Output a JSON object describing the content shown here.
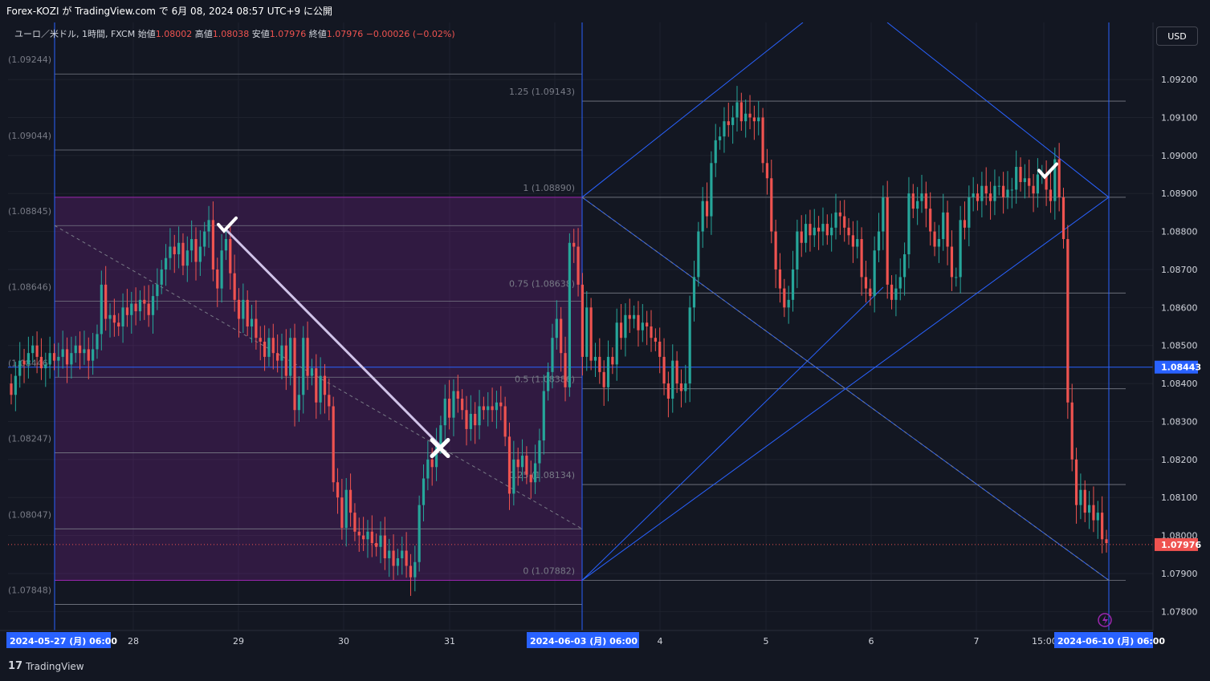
{
  "header": {
    "publish_text": "Forex-KOZI が TradingView.com で 6月 08, 2024 08:57 UTC+9 に公開"
  },
  "legend": {
    "symbol": "ユーロ／米ドル, 1時間, FXCM",
    "open_label": "始値",
    "open": "1.08002",
    "high_label": "高値",
    "high": "1.08038",
    "low_label": "安値",
    "low": "1.07976",
    "close_label": "終値",
    "close": "1.07976",
    "change": "−0.00026 (−0.02%)"
  },
  "currency_button": "USD",
  "footer": {
    "brand": "TradingView"
  },
  "colors": {
    "background": "#131722",
    "up": "#26a69a",
    "down": "#ef5350",
    "blue_line": "#2962ff",
    "fib_box": "#9c27b0",
    "axis_text": "#d1d4dc"
  },
  "chart_data": {
    "type": "candlestick",
    "symbol": "EUR/USD",
    "interval": "1h",
    "ylim": [
      1.0775,
      1.0935
    ],
    "price_ticks": [
      "1.09200",
      "1.09100",
      "1.09000",
      "1.08900",
      "1.08800",
      "1.08700",
      "1.08600",
      "1.08500",
      "1.08400",
      "1.08300",
      "1.08200",
      "1.08100",
      "1.08000",
      "1.07900",
      "1.07800"
    ],
    "left_scale_labels": [
      "(1.09244)",
      "(1.09044)",
      "(1.08845)",
      "(1.08646)",
      "(1.08446)",
      "(1.08247)",
      "(1.08047)",
      "(1.07848)"
    ],
    "current_price": "1.07976",
    "blue_level": "1.08443",
    "time_labels": [
      {
        "label": "2024-05-27 (月)  06:00",
        "highlight": true
      },
      {
        "label": "28"
      },
      {
        "label": "29"
      },
      {
        "label": "30"
      },
      {
        "label": "31"
      },
      {
        "label": "2024-06-03 (月)  06:00",
        "highlight": true
      },
      {
        "label": "4"
      },
      {
        "label": "5"
      },
      {
        "label": "6"
      },
      {
        "label": "7"
      },
      {
        "label": "15:00"
      },
      {
        "label": "2024-06-10 (月)  06:00",
        "highlight": true
      }
    ],
    "fib_levels": [
      {
        "ratio": "1.25",
        "price": 1.09143,
        "label": "1.25 (1.09143)"
      },
      {
        "ratio": "1",
        "price": 1.0889,
        "label": "1 (1.08890)"
      },
      {
        "ratio": "0.75",
        "price": 1.08638,
        "label": "0.75 (1.08638)"
      },
      {
        "ratio": "0.5",
        "price": 1.08386,
        "label": "0.5 (1.08386)"
      },
      {
        "ratio": "0.25",
        "price": 1.08134,
        "label": "0.25 (1.08134)"
      },
      {
        "ratio": "0",
        "price": 1.07882,
        "label": "0 (1.07882)"
      }
    ],
    "left_fib_prices": [
      1.09244,
      1.09044,
      1.08845,
      1.08646,
      1.08446,
      1.08247,
      1.08047,
      1.07848
    ],
    "closes": [
      1.0837,
      1.0842,
      1.0846,
      1.0845,
      1.0848,
      1.085,
      1.0847,
      1.0844,
      1.0845,
      1.0848,
      1.0846,
      1.0847,
      1.0849,
      1.0845,
      1.0848,
      1.085,
      1.0848,
      1.0849,
      1.0846,
      1.0849,
      1.0853,
      1.0866,
      1.0857,
      1.0858,
      1.0856,
      1.0855,
      1.086,
      1.0858,
      1.0861,
      1.0859,
      1.0862,
      1.0861,
      1.0858,
      1.0863,
      1.0866,
      1.087,
      1.0873,
      1.0876,
      1.0874,
      1.0877,
      1.0871,
      1.0875,
      1.0878,
      1.0872,
      1.0876,
      1.088,
      1.0883,
      1.087,
      1.0865,
      1.0875,
      1.0878,
      1.0869,
      1.0862,
      1.0857,
      1.0862,
      1.0855,
      1.0857,
      1.0852,
      1.0851,
      1.0847,
      1.0852,
      1.0848,
      1.0846,
      1.085,
      1.0842,
      1.0852,
      1.0833,
      1.0837,
      1.0852,
      1.0842,
      1.0844,
      1.0835,
      1.0842,
      1.0837,
      1.0834,
      1.0814,
      1.081,
      1.0802,
      1.0812,
      1.0806,
      1.0801,
      1.08,
      1.0799,
      1.0801,
      1.0798,
      1.0797,
      1.08,
      1.0794,
      1.0796,
      1.0792,
      1.0794,
      1.0796,
      1.0792,
      1.0789,
      1.0793,
      1.0808,
      1.0815,
      1.082,
      1.0818,
      1.0824,
      1.0829,
      1.0836,
      1.0831,
      1.0838,
      1.0836,
      1.0833,
      1.0828,
      1.0832,
      1.0829,
      1.0834,
      1.0833,
      1.0834,
      1.0833,
      1.0835,
      1.0834,
      1.0826,
      1.0811,
      1.082,
      1.0818,
      1.0821,
      1.0816,
      1.0814,
      1.0819,
      1.0825,
      1.0838,
      1.0843,
      1.0852,
      1.0857,
      1.0848,
      1.0839,
      1.0877,
      1.0876,
      1.0866,
      1.0847,
      1.086,
      1.0846,
      1.0847,
      1.0843,
      1.0839,
      1.0847,
      1.0845,
      1.0856,
      1.0852,
      1.0858,
      1.0857,
      1.0858,
      1.0854,
      1.0856,
      1.0855,
      1.0852,
      1.0851,
      1.0847,
      1.084,
      1.0836,
      1.0846,
      1.084,
      1.0838,
      1.084,
      1.086,
      1.0868,
      1.088,
      1.0888,
      1.0884,
      1.0898,
      1.0904,
      1.0905,
      1.0909,
      1.0908,
      1.091,
      1.0914,
      1.0909,
      1.0911,
      1.091,
      1.0909,
      1.091,
      1.0898,
      1.0894,
      1.088,
      1.087,
      1.0865,
      1.086,
      1.0862,
      1.087,
      1.088,
      1.0877,
      1.0882,
      1.0879,
      1.0881,
      1.088,
      1.0882,
      1.0879,
      1.0881,
      1.0885,
      1.0884,
      1.0881,
      1.0879,
      1.0876,
      1.0878,
      1.0868,
      1.0865,
      1.0863,
      1.0875,
      1.088,
      1.0889,
      1.0866,
      1.0862,
      1.0865,
      1.0868,
      1.0874,
      1.089,
      1.0886,
      1.0888,
      1.089,
      1.0886,
      1.088,
      1.0876,
      1.0878,
      1.0885,
      1.0876,
      1.0868,
      1.0868,
      1.0883,
      1.0881,
      1.0889,
      1.089,
      1.0888,
      1.0892,
      1.089,
      1.0888,
      1.0892,
      1.0892,
      1.0889,
      1.0891,
      1.0891,
      1.0897,
      1.0893,
      1.0894,
      1.0892,
      1.089,
      1.0895,
      1.0895,
      1.0891,
      1.0888,
      1.0899,
      1.0889,
      1.0878,
      1.0835,
      1.082,
      1.0808,
      1.0812,
      1.0806,
      1.0808,
      1.0804,
      1.0806,
      1.0799,
      1.0798
    ]
  }
}
